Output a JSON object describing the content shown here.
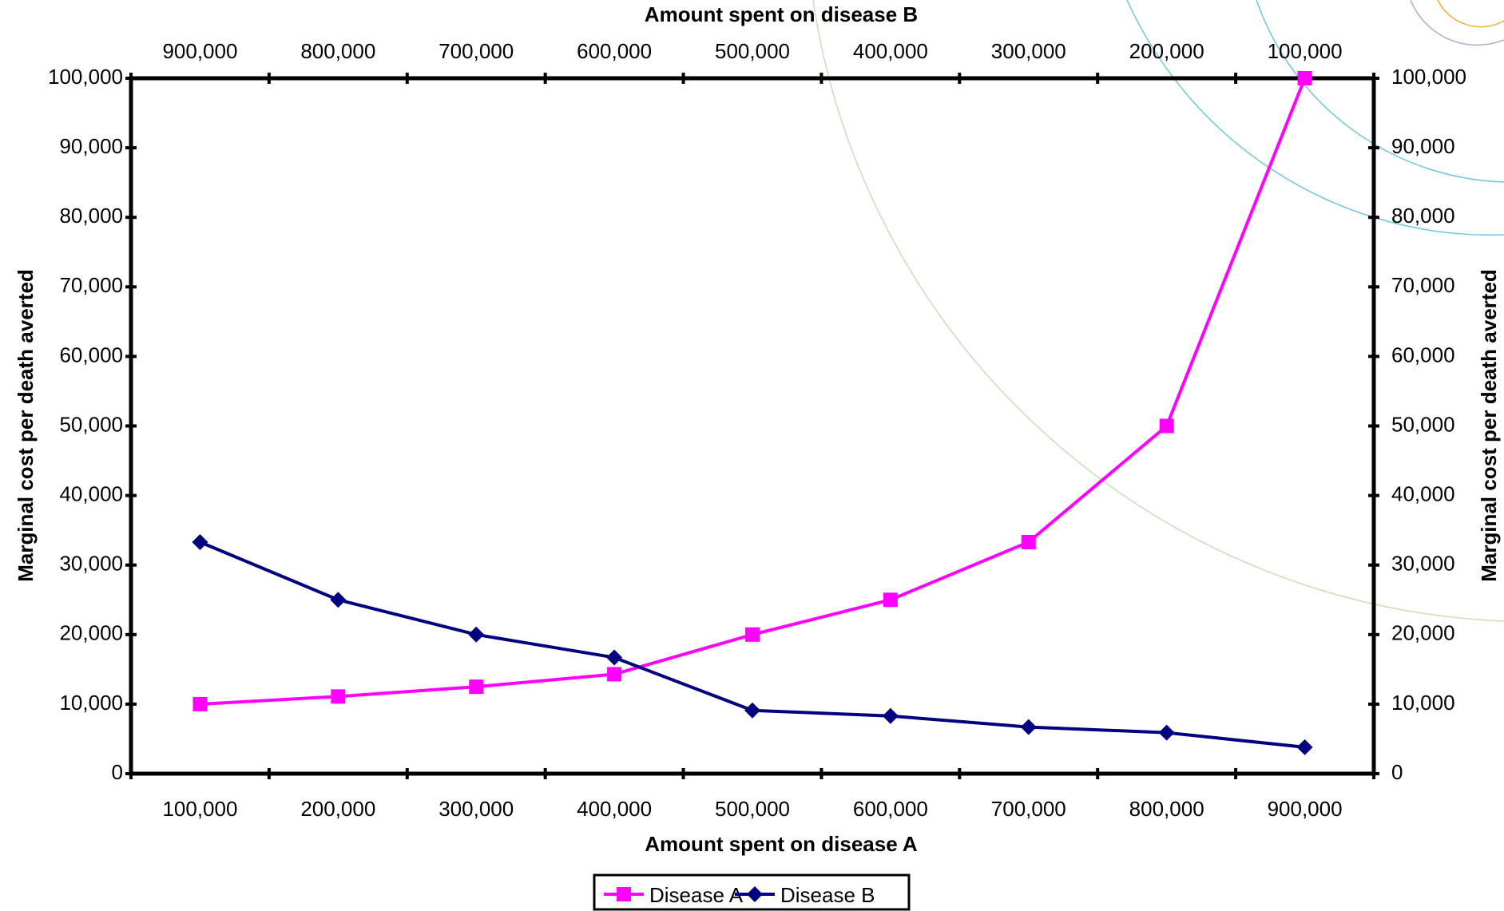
{
  "chart_data": {
    "type": "line",
    "x_label": "Amount spent on disease A",
    "x2_label": "Amount spent on disease B",
    "y_label": "Marginal cost per death averted",
    "y2_label": "Marginal cost per death averted",
    "categories": [
      "100,000",
      "200,000",
      "300,000",
      "400,000",
      "500,000",
      "600,000",
      "700,000",
      "800,000",
      "900,000"
    ],
    "x2_categories": [
      "900,000",
      "800,000",
      "700,000",
      "600,000",
      "500,000",
      "400,000",
      "300,000",
      "200,000",
      "100,000"
    ],
    "series": [
      {
        "name": "Disease A",
        "color": "#ff00ff",
        "marker": "square",
        "values": [
          10000,
          11100,
          12500,
          14300,
          20000,
          25000,
          33300,
          50000,
          100000
        ]
      },
      {
        "name": "Disease B",
        "color": "#000080",
        "marker": "diamond",
        "values": [
          33300,
          25000,
          20000,
          16700,
          9100,
          8300,
          6700,
          5900,
          3800
        ]
      }
    ],
    "ylim": [
      0,
      100000
    ],
    "yticks": [
      0,
      {
        "value": 10000,
        "label": "10,000"
      },
      {
        "value": 20000,
        "label": "20,000"
      },
      {
        "value": 30000,
        "label": "30,000"
      },
      {
        "value": 40000,
        "label": "40,000"
      },
      {
        "value": 50000,
        "label": "50,000"
      },
      {
        "value": 60000,
        "label": "60,000"
      },
      {
        "value": 70000,
        "label": "70,000"
      },
      {
        "value": 80000,
        "label": "80,000"
      },
      {
        "value": 90000,
        "label": "90,000"
      },
      {
        "value": 100000,
        "label": "100,000"
      }
    ],
    "y2lim": [
      0,
      100000
    ],
    "y2ticks": [
      0,
      {
        "value": 10000,
        "label": "10,000"
      },
      {
        "value": 20000,
        "label": "20,000"
      },
      {
        "value": 30000,
        "label": "30,000"
      },
      {
        "value": 40000,
        "label": "40,000"
      },
      {
        "value": 50000,
        "label": "50,000"
      },
      {
        "value": 60000,
        "label": "60,000"
      },
      {
        "value": 70000,
        "label": "70,000"
      },
      {
        "value": 80000,
        "label": "80,000"
      },
      {
        "value": 90000,
        "label": "90,000"
      },
      {
        "value": 100000,
        "label": "100,000"
      }
    ],
    "grid": false,
    "legend": "bottom"
  }
}
